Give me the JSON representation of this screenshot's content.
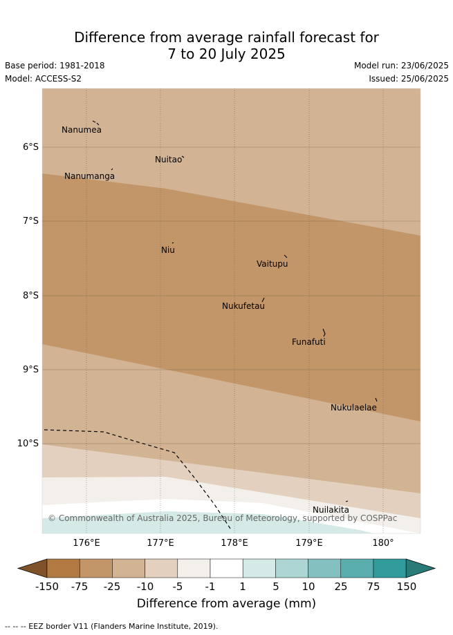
{
  "title_line1": "Difference from average rainfall forecast for",
  "title_line2": "7 to 20 July 2025",
  "base_period": "Base period: 1981-2018",
  "model": "Model: ACCESS-S2",
  "model_run": "Model run: 23/06/2025",
  "issued": "Issued: 25/06/2025",
  "lat_labels": [
    "6°S",
    "7°S",
    "8°S",
    "9°S",
    "10°S"
  ],
  "lon_labels": [
    "176°E",
    "177°E",
    "178°E",
    "179°E",
    "180°"
  ],
  "places": [
    "Nanumea",
    "Nuitao",
    "Nanumanga",
    "Niu",
    "Vaitupu",
    "Nukufetau",
    "Funafuti",
    "Nukulaelae",
    "Nuilakita"
  ],
  "copyright": "© Commonwealth of Australia 2025, Bureau of Meteorology, supported by COSPPac",
  "colorbar": {
    "title": "Difference from average (mm)",
    "labels": [
      "-150",
      "-75",
      "-25",
      "-10",
      "-5",
      "-1",
      "1",
      "5",
      "10",
      "25",
      "75",
      "150"
    ],
    "colors": [
      "#80522a",
      "#b07a42",
      "#c29669",
      "#d2b393",
      "#e3d0bf",
      "#f3efea",
      "#ffffff",
      "#d5e9e7",
      "#acd5d4",
      "#85c0c0",
      "#5aaeae",
      "#329b9b",
      "#2a7a7a"
    ]
  },
  "legend_note": "-- -- -- EEZ border V11 (Flanders Marine Institute, 2019)."
}
